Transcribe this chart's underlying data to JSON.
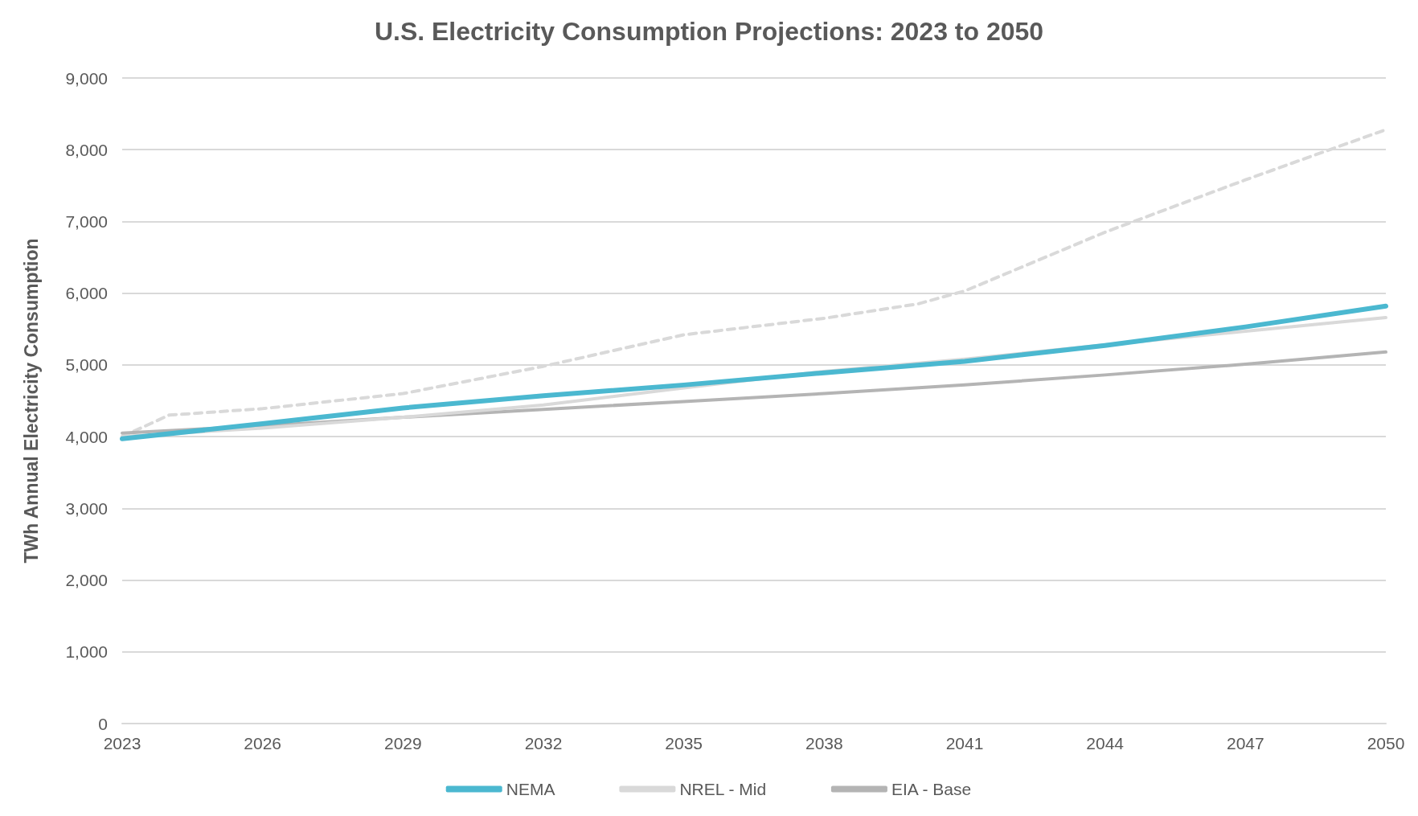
{
  "chart_data": {
    "type": "line",
    "title": "U.S. Electricity Consumption Projections: 2023 to 2050",
    "ylabel": "TWh Annual Electricity Consumption",
    "xlim": [
      2023,
      2050
    ],
    "xticks": [
      2023,
      2026,
      2029,
      2032,
      2035,
      2038,
      2041,
      2044,
      2047,
      2050
    ],
    "ylim": [
      0,
      9000
    ],
    "yticks": [
      0,
      {
        "value": 1000,
        "label": "1,000"
      },
      {
        "value": 2000,
        "label": "2,000"
      },
      {
        "value": 3000,
        "label": "3,000"
      },
      {
        "value": 4000,
        "label": "4,000"
      },
      {
        "value": 5000,
        "label": "5,000"
      },
      {
        "value": 6000,
        "label": "6,000"
      },
      {
        "value": 7000,
        "label": "7,000"
      },
      {
        "value": 8000,
        "label": "8,000"
      },
      {
        "value": 9000,
        "label": "9,000"
      }
    ],
    "grid": "y",
    "legend": "bottom",
    "marker": "none",
    "series": [
      {
        "name": "NEMA",
        "color": "#4bb8d0",
        "line_style": "solid",
        "x": [
          2023,
          2026,
          2029,
          2032,
          2035,
          2038,
          2041,
          2044,
          2047,
          2050
        ],
        "values": [
          3970,
          4180,
          4400,
          4570,
          4720,
          4890,
          5050,
          5270,
          5530,
          5820
        ]
      },
      {
        "name": "NREL - Mid",
        "color": "#d9d9d9",
        "line_style": "solid",
        "x": [
          2023,
          2026,
          2029,
          2032,
          2035,
          2038,
          2041,
          2044,
          2047,
          2050
        ],
        "values": [
          4000,
          4120,
          4270,
          4440,
          4680,
          4910,
          5080,
          5280,
          5470,
          5660
        ]
      },
      {
        "name": "EIA - Base",
        "color": "#b4b4b4",
        "line_style": "solid",
        "x": [
          2023,
          2026,
          2029,
          2032,
          2035,
          2038,
          2041,
          2044,
          2047,
          2050
        ],
        "values": [
          4050,
          4150,
          4270,
          4380,
          4490,
          4600,
          4720,
          4860,
          5010,
          5180
        ]
      },
      {
        "color": "#d9d9d9",
        "line_style": "dashed",
        "x": [
          2023,
          2024,
          2026,
          2029,
          2032,
          2035,
          2038,
          2040,
          2041,
          2044,
          2047,
          2050
        ],
        "values": [
          4000,
          4300,
          4390,
          4600,
          4980,
          5420,
          5650,
          5850,
          6030,
          6850,
          7580,
          8280
        ]
      }
    ]
  }
}
